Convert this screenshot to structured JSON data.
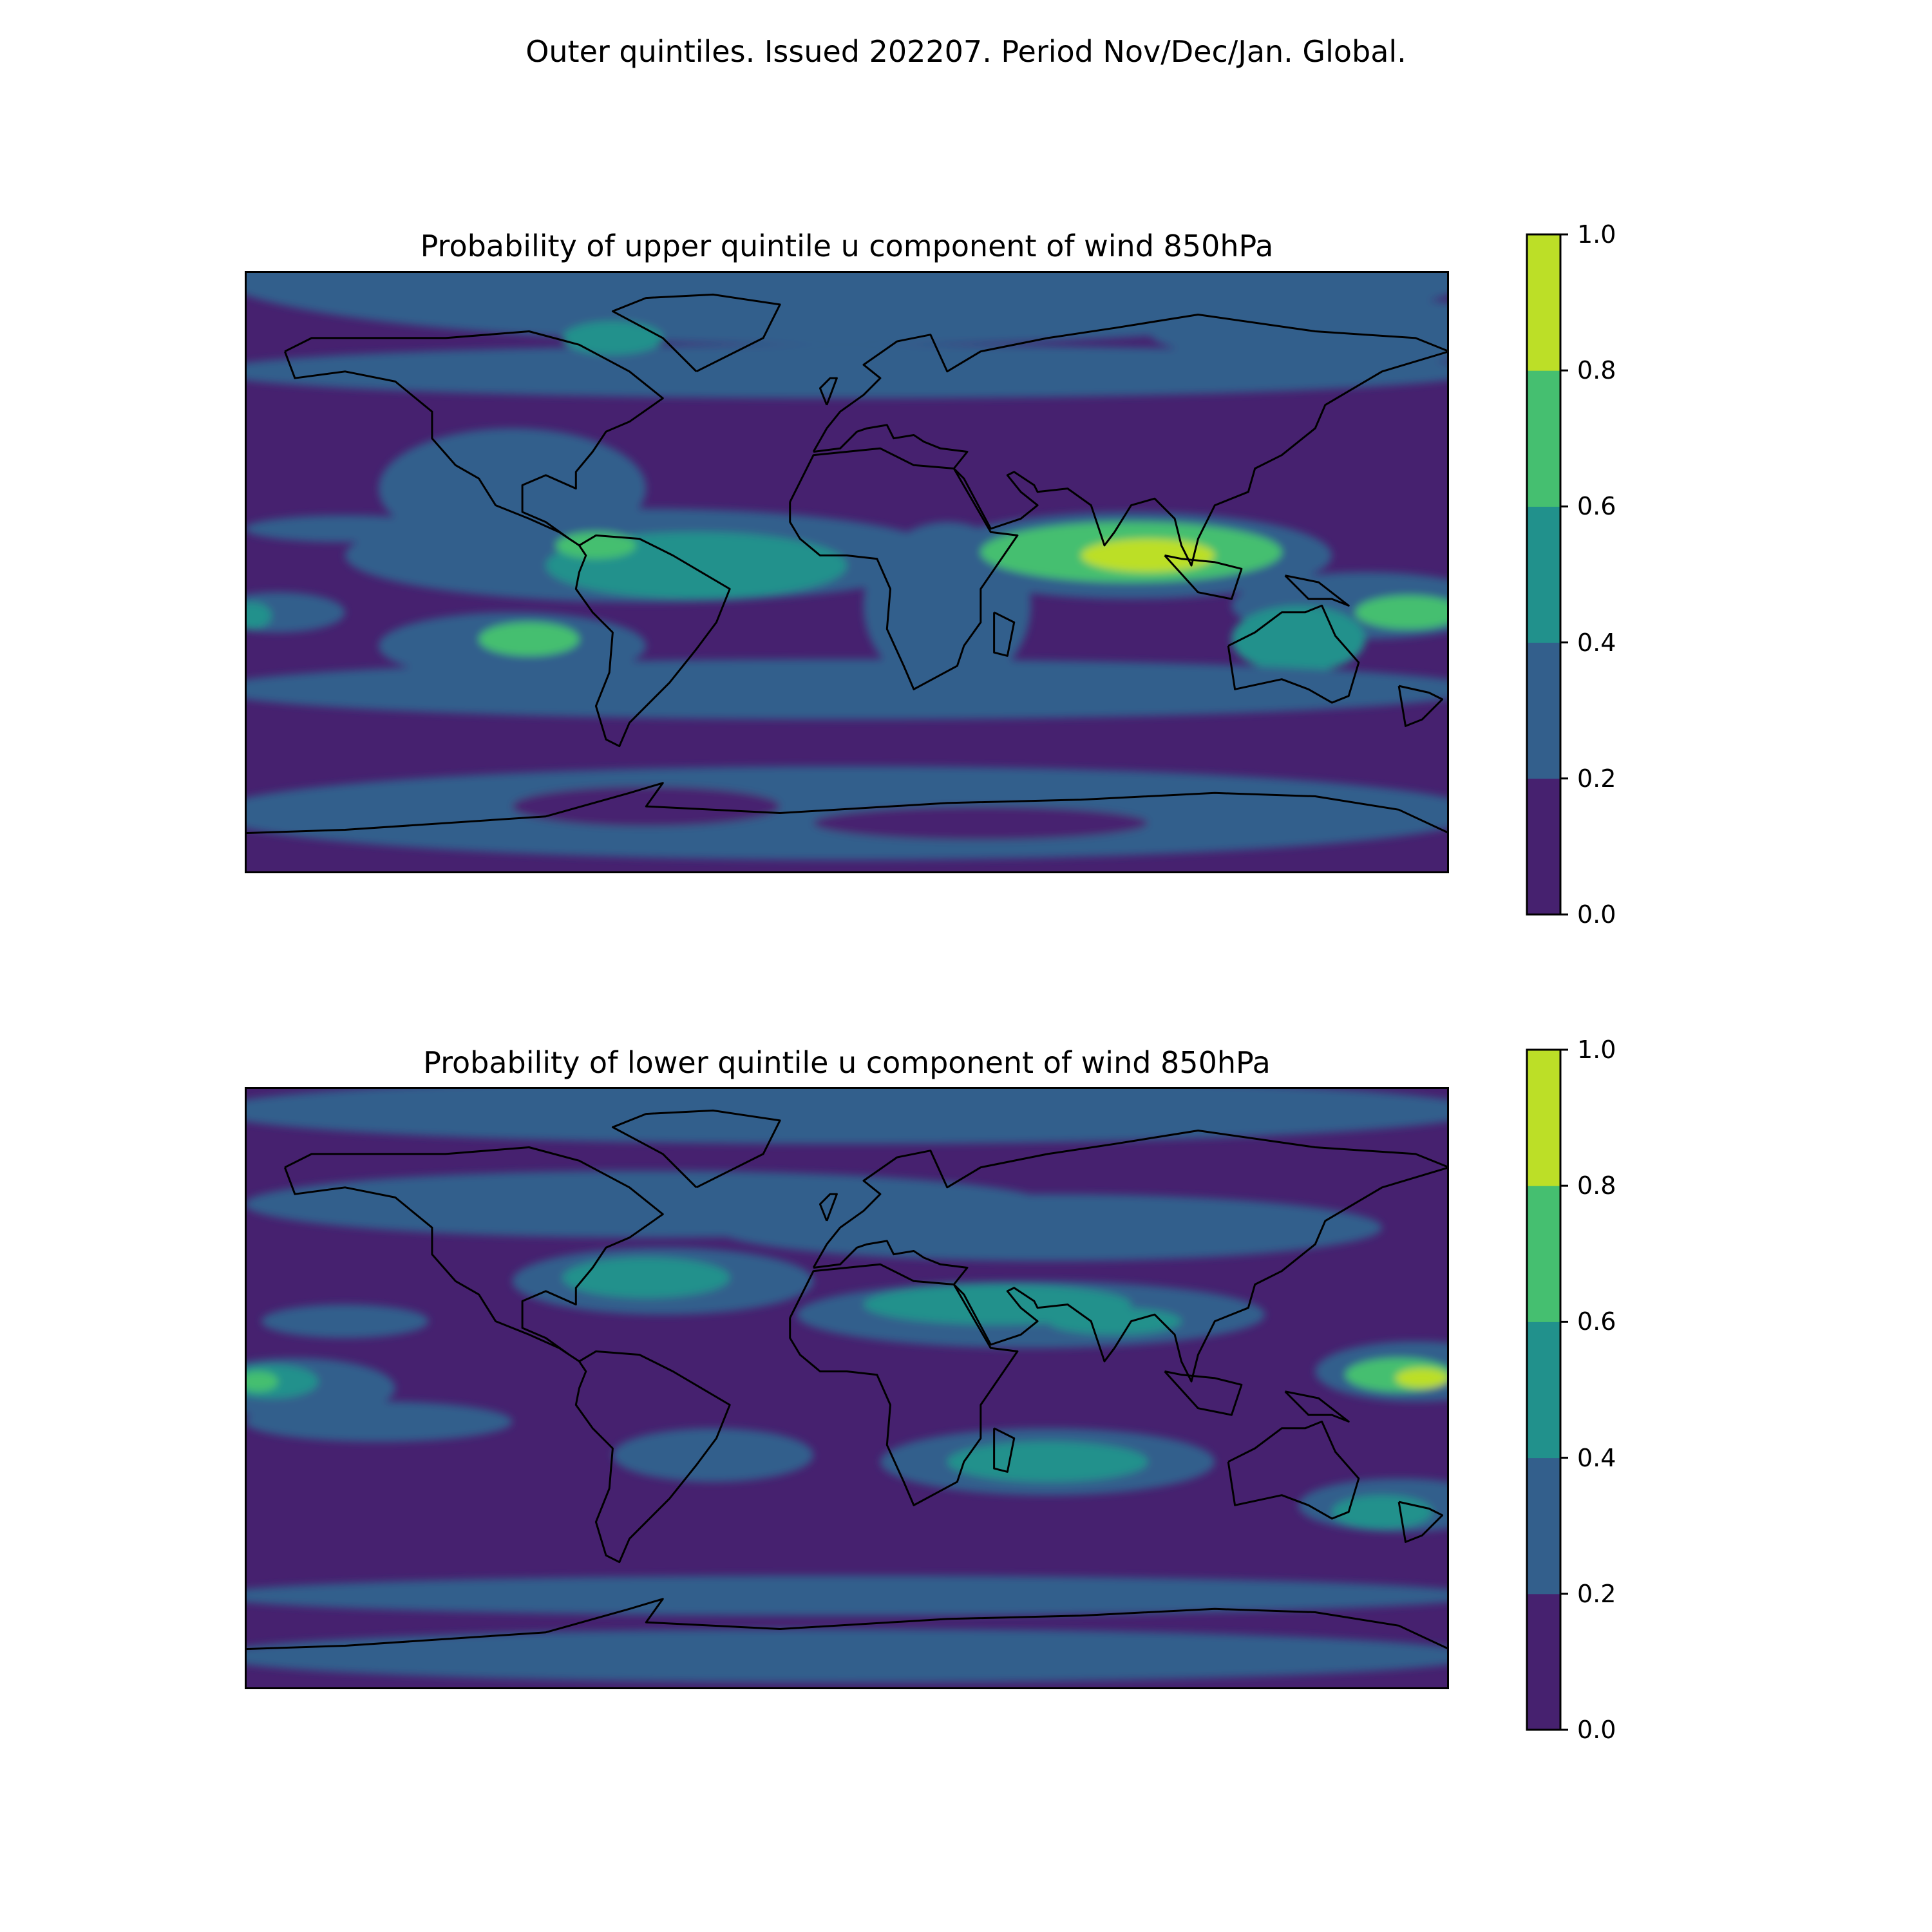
{
  "figure": {
    "suptitle": "Outer quintiles. Issued 202207. Period Nov/Dec/Jan. Global."
  },
  "panels": [
    {
      "title": "Probability of upper quintile u component of wind 850hPa",
      "colorbar_ticks": [
        "0.0",
        "0.2",
        "0.4",
        "0.6",
        "0.8",
        "1.0"
      ]
    },
    {
      "title": "Probability of lower quintile u component of wind 850hPa",
      "colorbar_ticks": [
        "0.0",
        "0.2",
        "0.4",
        "0.6",
        "0.8",
        "1.0"
      ]
    }
  ],
  "colorbar": {
    "levels": [
      0.0,
      0.2,
      0.4,
      0.6,
      0.8,
      1.0
    ],
    "colors": [
      "#46216f",
      "#335f8c",
      "#21918c",
      "#45bf70",
      "#bcdf27"
    ]
  },
  "chart_data": [
    {
      "type": "heatmap",
      "title": "Probability of upper quintile u component of wind 850hPa",
      "projection": "PlateCarree, global",
      "color_levels": [
        0.0,
        0.2,
        0.4,
        0.6,
        0.8,
        1.0
      ],
      "colorbar_range": [
        0,
        1
      ],
      "regions": [
        {
          "region": "Arctic / high northern latitudes",
          "range": [
            0.2,
            0.4
          ]
        },
        {
          "region": "North Pacific and North Atlantic subtropics",
          "range": [
            0.0,
            0.2
          ]
        },
        {
          "region": "Tropical Atlantic / northern South America",
          "range": [
            0.4,
            0.6
          ]
        },
        {
          "region": "Indian Ocean north of equator",
          "range": [
            0.6,
            0.8
          ]
        },
        {
          "region": "Equatorial Indian Ocean near Sumatra",
          "range": [
            0.8,
            1.0
          ]
        },
        {
          "region": "Western Pacific north of Australia",
          "range": [
            0.6,
            0.8
          ]
        },
        {
          "region": "Southern Ocean mid-latitudes",
          "range": [
            0.2,
            0.4
          ]
        },
        {
          "region": "Antarctica",
          "range": [
            0.0,
            0.4
          ]
        }
      ]
    },
    {
      "type": "heatmap",
      "title": "Probability of lower quintile u component of wind 850hPa",
      "projection": "PlateCarree, global",
      "color_levels": [
        0.0,
        0.2,
        0.4,
        0.6,
        0.8,
        1.0
      ],
      "colorbar_range": [
        0,
        1
      ],
      "regions": [
        {
          "region": "Equatorial western Pacific (dateline)",
          "range": [
            0.8,
            1.0
          ]
        },
        {
          "region": "Central equatorial Pacific",
          "range": [
            0.6,
            0.8
          ]
        },
        {
          "region": "Sahara / Arabia / South Asia band",
          "range": [
            0.4,
            0.6
          ]
        },
        {
          "region": "South Indian Ocean subtropics",
          "range": [
            0.4,
            0.6
          ]
        },
        {
          "region": "Tasman Sea",
          "range": [
            0.4,
            0.6
          ]
        },
        {
          "region": "Western North Atlantic",
          "range": [
            0.4,
            0.6
          ]
        },
        {
          "region": "Southern Ocean",
          "range": [
            0.0,
            0.2
          ]
        },
        {
          "region": "Arctic",
          "range": [
            0.0,
            0.4
          ]
        }
      ]
    }
  ]
}
